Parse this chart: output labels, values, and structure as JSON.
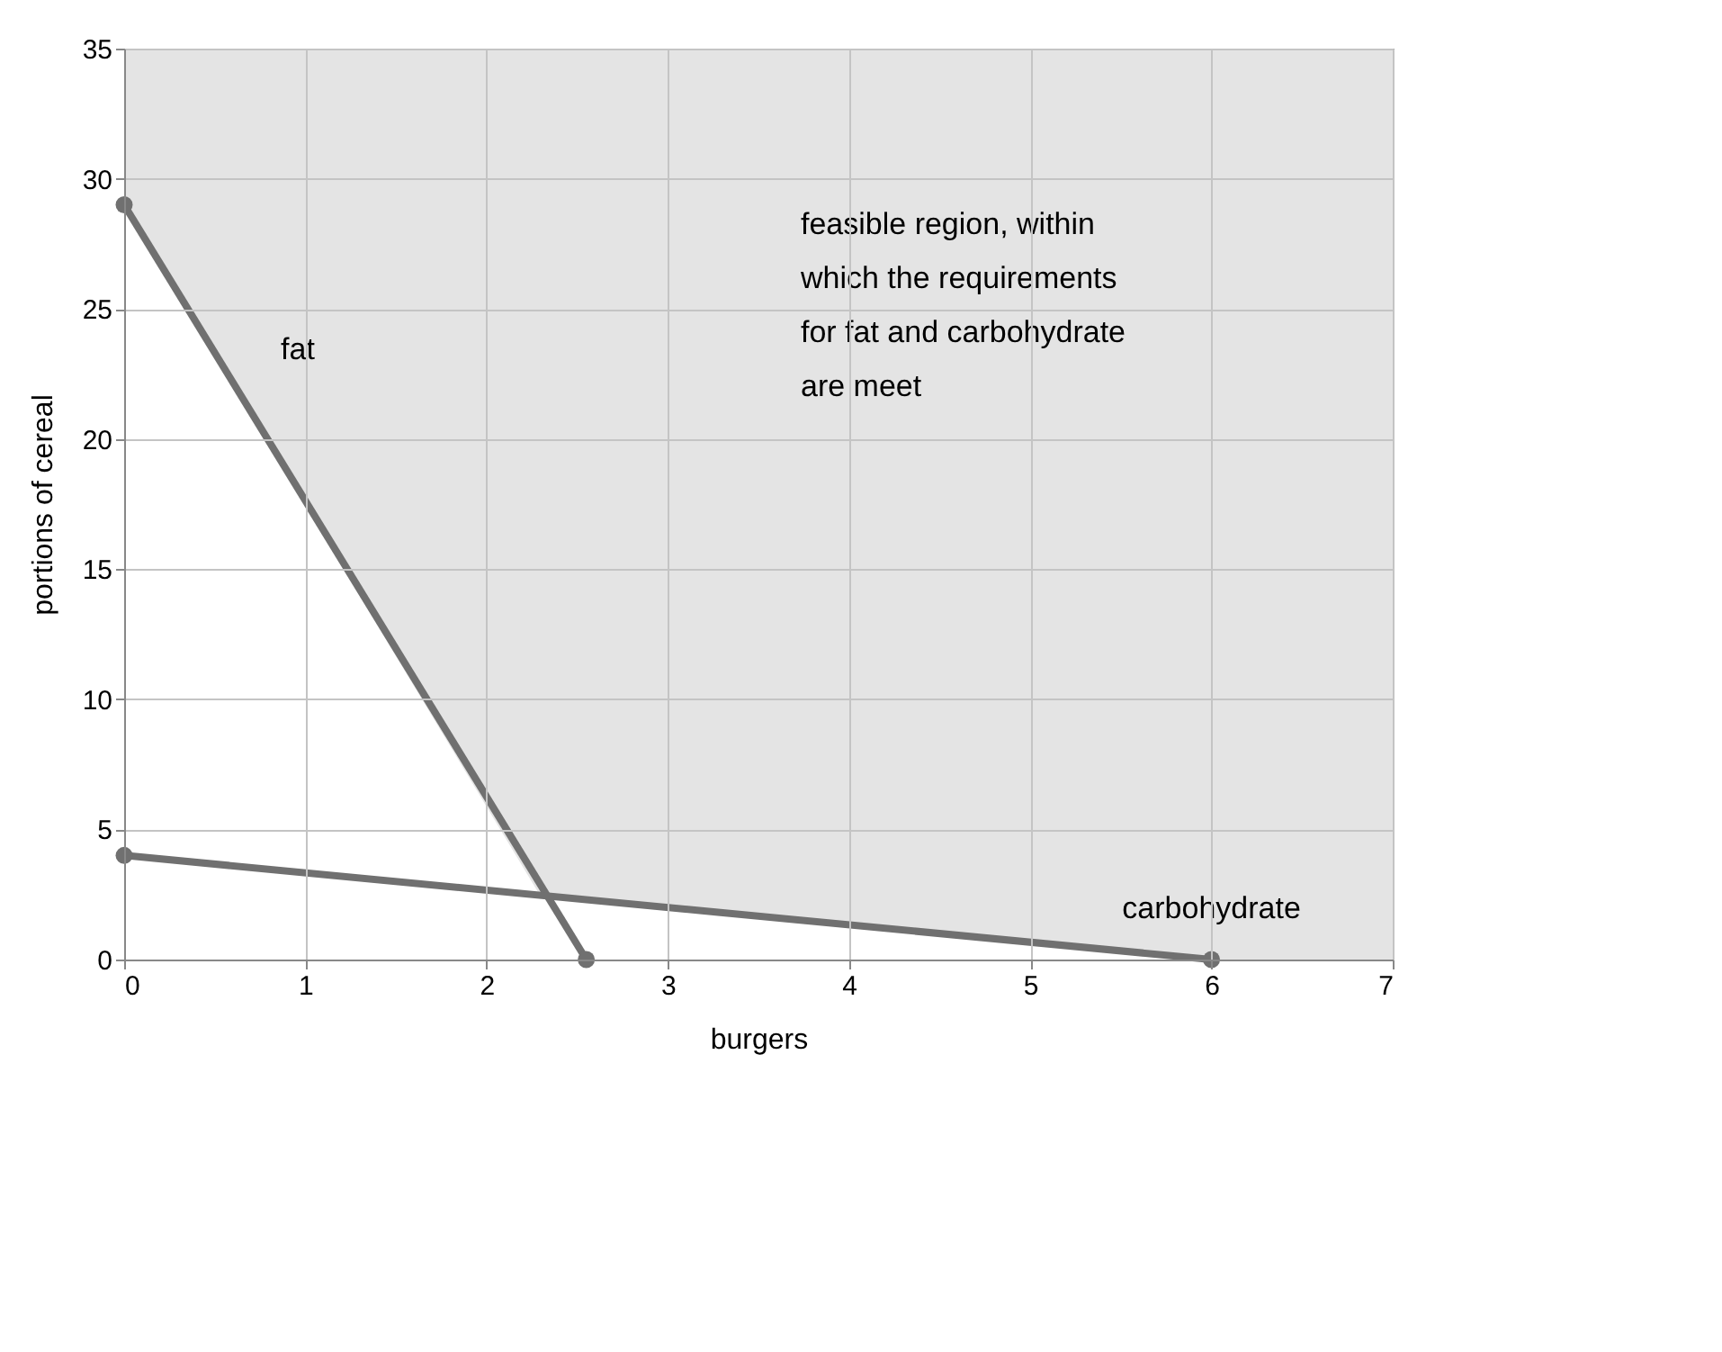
{
  "chart_data": {
    "type": "line",
    "xlabel": "burgers",
    "ylabel": "portions of cereal",
    "xlim": [
      0,
      7
    ],
    "ylim": [
      0,
      35
    ],
    "xticks": [
      0,
      1,
      2,
      3,
      4,
      5,
      6,
      7
    ],
    "yticks": [
      0,
      5,
      10,
      15,
      20,
      25,
      30,
      35
    ],
    "grid": true,
    "line_style": "solid",
    "series": [
      {
        "type": "area",
        "color": "#ffffff",
        "x": [
          0,
          2.3,
          6,
          7
        ],
        "values": [
          29,
          2.4,
          0,
          0
        ]
      },
      {
        "name": "fat",
        "color": "#707070",
        "marker": "circle",
        "x": [
          0,
          2.55
        ],
        "values": [
          29,
          0
        ]
      },
      {
        "name": "carbohydrate",
        "color": "#707070",
        "marker": "circle",
        "x": [
          0,
          6
        ],
        "values": [
          4,
          0
        ]
      }
    ],
    "annotations": [
      "feasible region, within which the requirements for fat and carbohydrate are meet"
    ]
  }
}
